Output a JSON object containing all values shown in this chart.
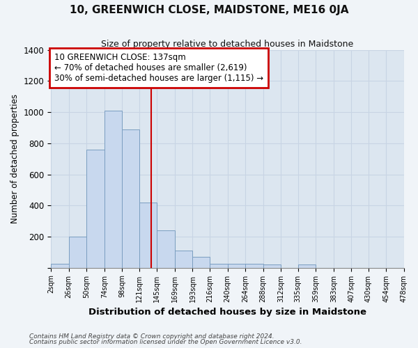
{
  "title": "10, GREENWICH CLOSE, MAIDSTONE, ME16 0JA",
  "subtitle": "Size of property relative to detached houses in Maidstone",
  "xlabel": "Distribution of detached houses by size in Maidstone",
  "ylabel": "Number of detached properties",
  "bin_edges": [
    2,
    26,
    50,
    74,
    98,
    121,
    145,
    169,
    193,
    216,
    240,
    264,
    288,
    312,
    335,
    359,
    383,
    407,
    430,
    454,
    478
  ],
  "tick_labels": [
    "2sqm",
    "26sqm",
    "50sqm",
    "74sqm",
    "98sqm",
    "121sqm",
    "145sqm",
    "169sqm",
    "193sqm",
    "216sqm",
    "240sqm",
    "264sqm",
    "288sqm",
    "312sqm",
    "335sqm",
    "359sqm",
    "383sqm",
    "407sqm",
    "430sqm",
    "454sqm",
    "478sqm"
  ],
  "bar_heights": [
    25,
    200,
    760,
    1010,
    890,
    420,
    240,
    110,
    70,
    25,
    25,
    25,
    20,
    0,
    20,
    0,
    0,
    0,
    0,
    0
  ],
  "bar_color": "#c8d8ee",
  "bar_edgecolor": "#7a9ec0",
  "grid_color": "#c8d4e4",
  "background_color": "#dce6f0",
  "figure_color": "#f0f4f8",
  "red_line_x": 137,
  "annotation_text_line1": "10 GREENWICH CLOSE: 137sqm",
  "annotation_text_line2": "← 70% of detached houses are smaller (2,619)",
  "annotation_text_line3": "30% of semi-detached houses are larger (1,115) →",
  "annotation_box_color": "#ffffff",
  "annotation_box_edgecolor": "#cc0000",
  "red_line_color": "#cc0000",
  "footer1": "Contains HM Land Registry data © Crown copyright and database right 2024.",
  "footer2": "Contains public sector information licensed under the Open Government Licence v3.0.",
  "ylim": [
    0,
    1400
  ],
  "yticks": [
    0,
    200,
    400,
    600,
    800,
    1000,
    1200,
    1400
  ]
}
